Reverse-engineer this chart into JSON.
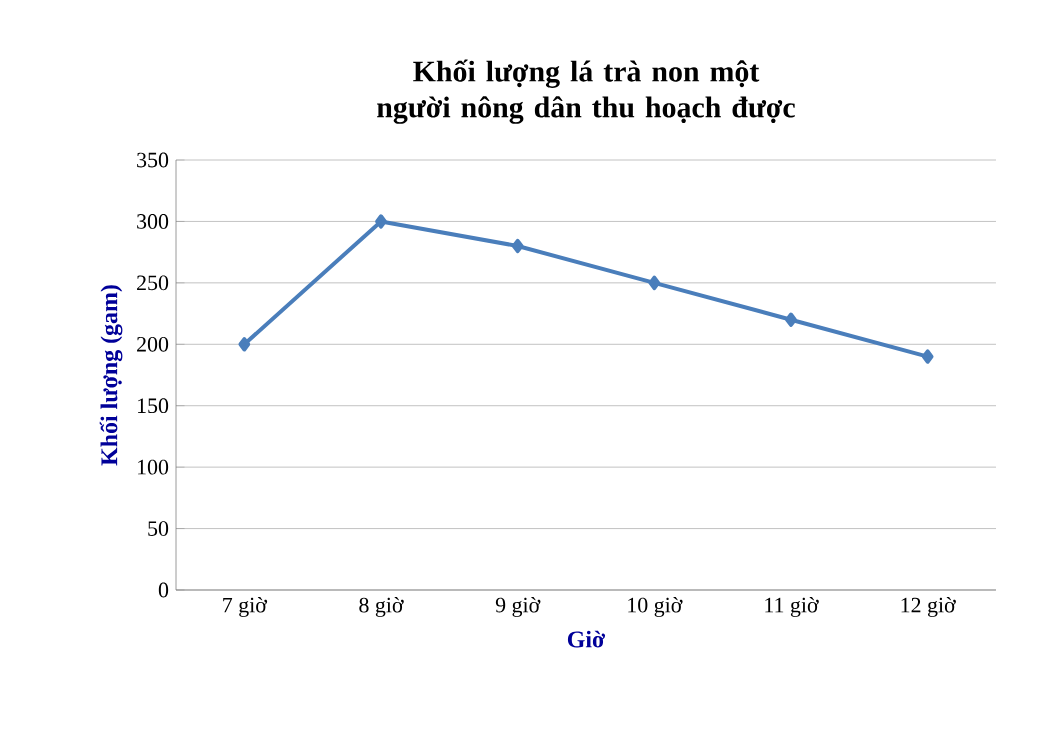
{
  "chart_data": {
    "type": "line",
    "title": "Khối lượng lá trà non một người nông dân thu hoạch được",
    "xlabel": "Giờ",
    "ylabel": "Khối lượng (gam)",
    "categories": [
      "7 giờ",
      "8 giờ",
      "9 giờ",
      "10 giờ",
      "11 giờ",
      "12 giờ"
    ],
    "series": [
      {
        "color": "#4a7ebb",
        "values": [
          200,
          300,
          280,
          250,
          220,
          190
        ]
      }
    ],
    "ylim": [
      0,
      350
    ],
    "yticks": [
      0,
      50,
      100,
      150,
      200,
      250,
      300,
      350
    ],
    "grid": "y",
    "marker": "diamond",
    "line_style": "solid"
  }
}
